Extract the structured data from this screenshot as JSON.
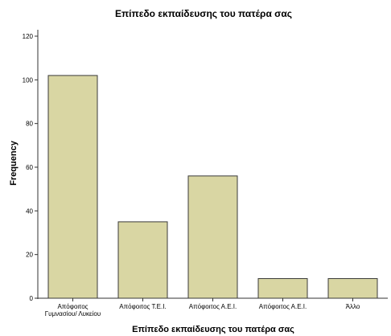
{
  "chart_data": {
    "type": "bar",
    "title": "Επίπεδο εκπαίδευσης του πατέρα σας",
    "xlabel": "Επίπεδο εκπαίδευσης του πατέρα σας",
    "ylabel": "Frequency",
    "ylim": [
      0,
      120
    ],
    "yticks": [
      0,
      20,
      40,
      60,
      80,
      100,
      120
    ],
    "categories": [
      [
        "Απόφοιτος",
        "Γυμνασίου/ Λυκείου"
      ],
      [
        "Απόφοιτος Τ.Ε.Ι."
      ],
      [
        "Απόφοιτος Α.Ε.Ι."
      ],
      [
        "Απόφοιτος Α.Ε.Ι."
      ],
      [
        "Άλλο"
      ]
    ],
    "values": [
      102,
      35,
      56,
      9,
      9
    ],
    "grid": false,
    "colors": {
      "bar_fill": "#d9d6a3",
      "bar_stroke": "#3a3a3a",
      "background": "#ffffff"
    }
  }
}
